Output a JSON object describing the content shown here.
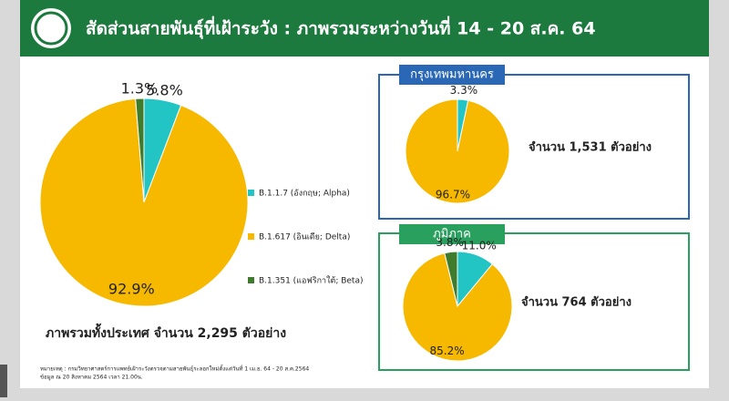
{
  "header": {
    "title": "สัดส่วนสายพันธุ์ที่เฝ้าระวัง : ภาพรวมระหว่างวันที่ 14 - 20 ส.ค. 64"
  },
  "notes": [
    "หมายเหตุ : กรมวิทยาศาสตร์การแพทย์เฝ้าระวังตรวจตามสายพันธุ์ระลอกใหม่ตั้งแต่วันที่ 1 เม.ย. 64 - 20 ส.ค.2564",
    "ข้อมูล ณ 20 สิงหาคม 2564 เวลา 21.00น."
  ],
  "chart_data": [
    {
      "type": "pie",
      "caption": "ภาพรวมทั้งประเทศ จำนวน 2,295 ตัวอย่าง",
      "categories": [
        "B.1.1.7 (อังกฤษ; Alpha)",
        "B.1.617 (อินเดีย; Delta)",
        "B.1.351 (แอฟริกาใต้; Beta)"
      ],
      "values": [
        5.8,
        92.9,
        1.3
      ],
      "value_labels": [
        "5.8%",
        "92.9%",
        "1.3%"
      ],
      "colors": [
        "#22c4c4",
        "#f6b900",
        "#3e7b2c"
      ],
      "legend": "right"
    },
    {
      "type": "pie",
      "title": "กรุงเทพมหานคร",
      "caption": "จำนวน 1,531 ตัวอย่าง",
      "values": [
        3.3,
        96.7
      ],
      "value_labels": [
        "3.3%",
        "96.7%"
      ],
      "colors": [
        "#22c4c4",
        "#f6b900"
      ]
    },
    {
      "type": "pie",
      "title": "ภูมิภาค",
      "caption": "จำนวน 764 ตัวอย่าง",
      "values": [
        11.0,
        85.2,
        3.8
      ],
      "value_labels": [
        "11.0%",
        "85.2%",
        "3.8%"
      ],
      "colors": [
        "#22c4c4",
        "#f6b900",
        "#3e7b2c"
      ]
    }
  ]
}
